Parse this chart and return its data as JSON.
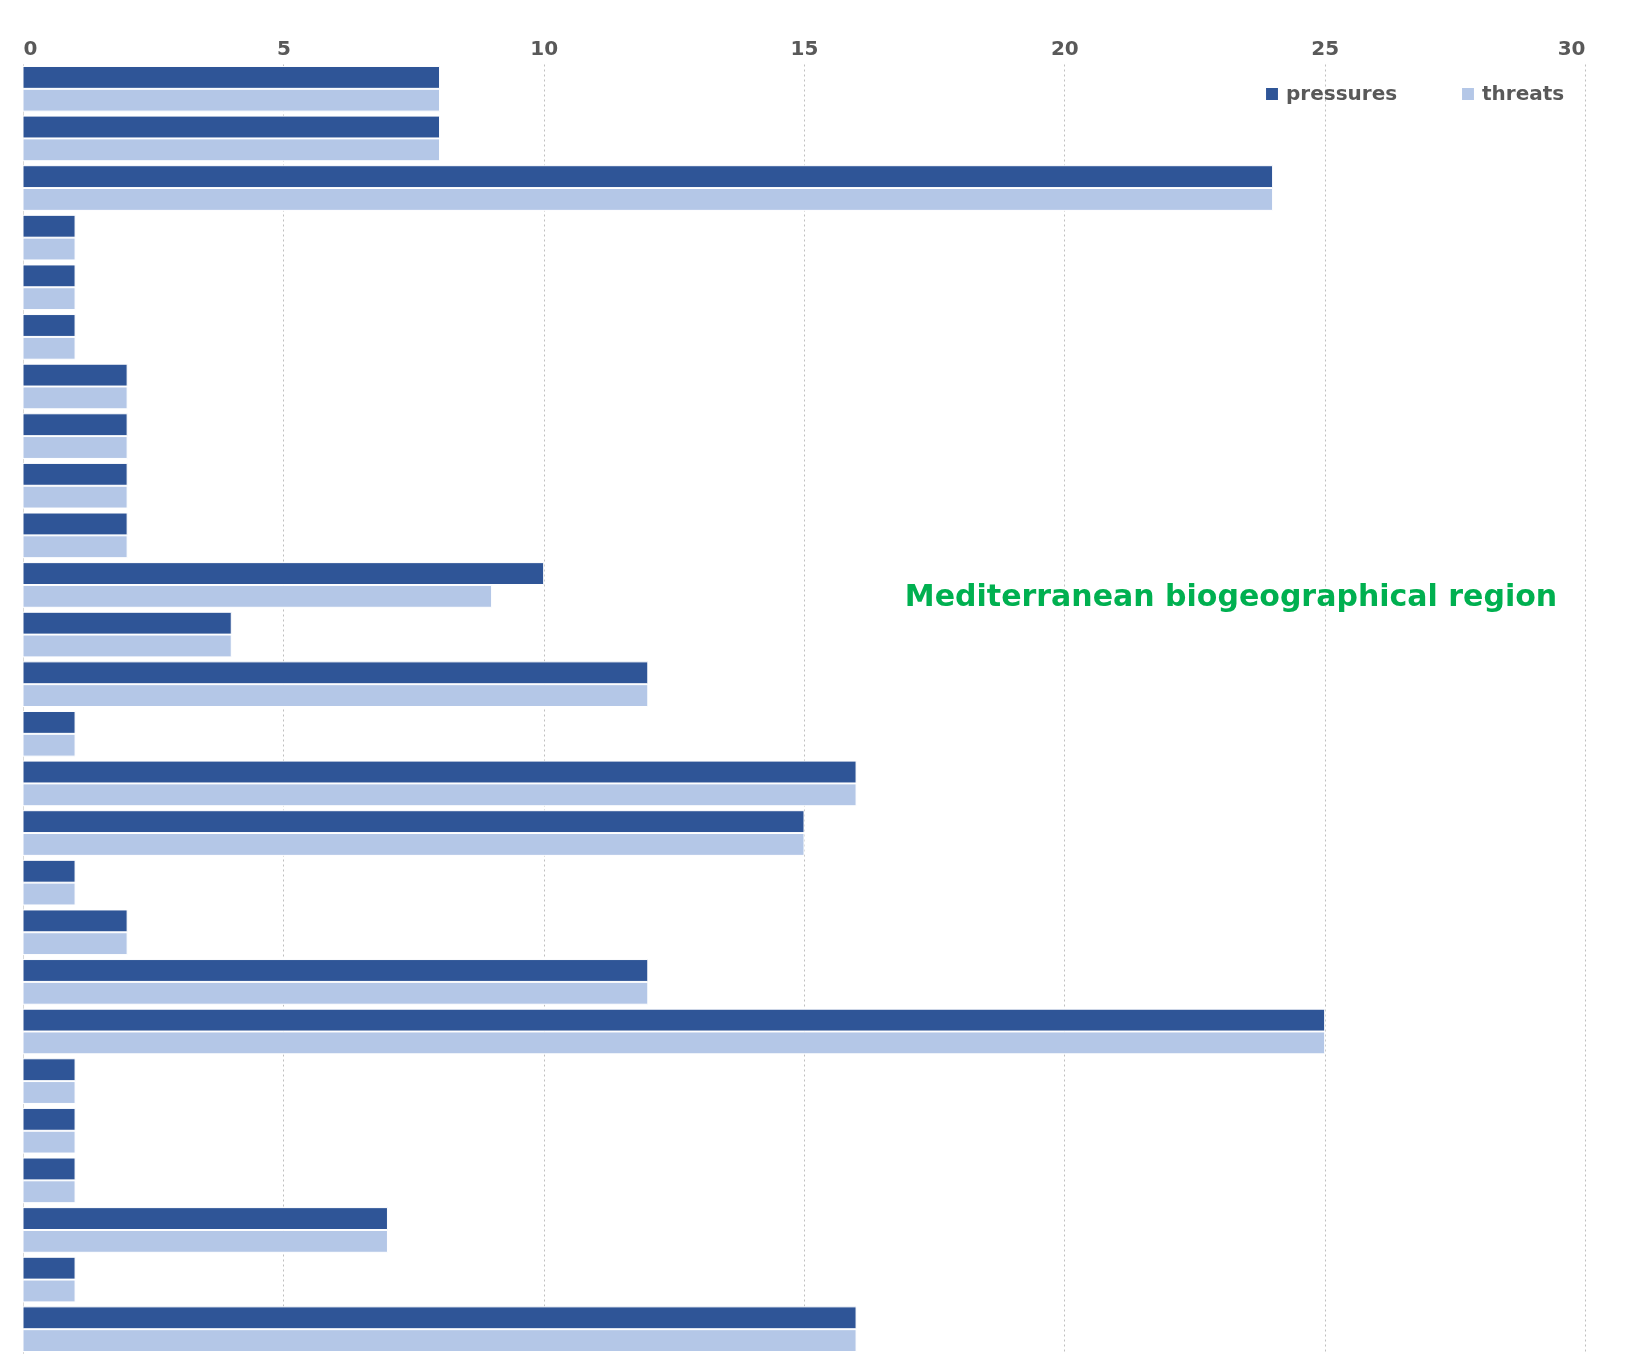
{
  "chart_data": {
    "type": "bar",
    "orientation": "horizontal",
    "categories": [
      null,
      null,
      null,
      null,
      null,
      null,
      null,
      null,
      null,
      null,
      null,
      null,
      null,
      null,
      null,
      null,
      null,
      null,
      null,
      null,
      null,
      null,
      null,
      null,
      null,
      null
    ],
    "series": [
      {
        "name": "pressures",
        "color": "#2f5597",
        "values": [
          8,
          8,
          24,
          1,
          1,
          1,
          2,
          2,
          2,
          2,
          10,
          4,
          12,
          1,
          16,
          15,
          1,
          2,
          12,
          25,
          1,
          1,
          1,
          7,
          1,
          16
        ]
      },
      {
        "name": "threats",
        "color": "#b4c7e7",
        "values": [
          8,
          8,
          24,
          1,
          1,
          1,
          2,
          2,
          2,
          2,
          9,
          4,
          12,
          1,
          16,
          15,
          1,
          2,
          12,
          25,
          1,
          1,
          1,
          7,
          1,
          16
        ]
      }
    ],
    "xlim": [
      0,
      30
    ],
    "xticks": [
      0,
      5,
      10,
      15,
      20,
      25,
      30
    ],
    "grid": "x",
    "legend": "top right",
    "tick_labels": "x",
    "annotations": [
      "Mediterranean biogeographical region"
    ]
  }
}
